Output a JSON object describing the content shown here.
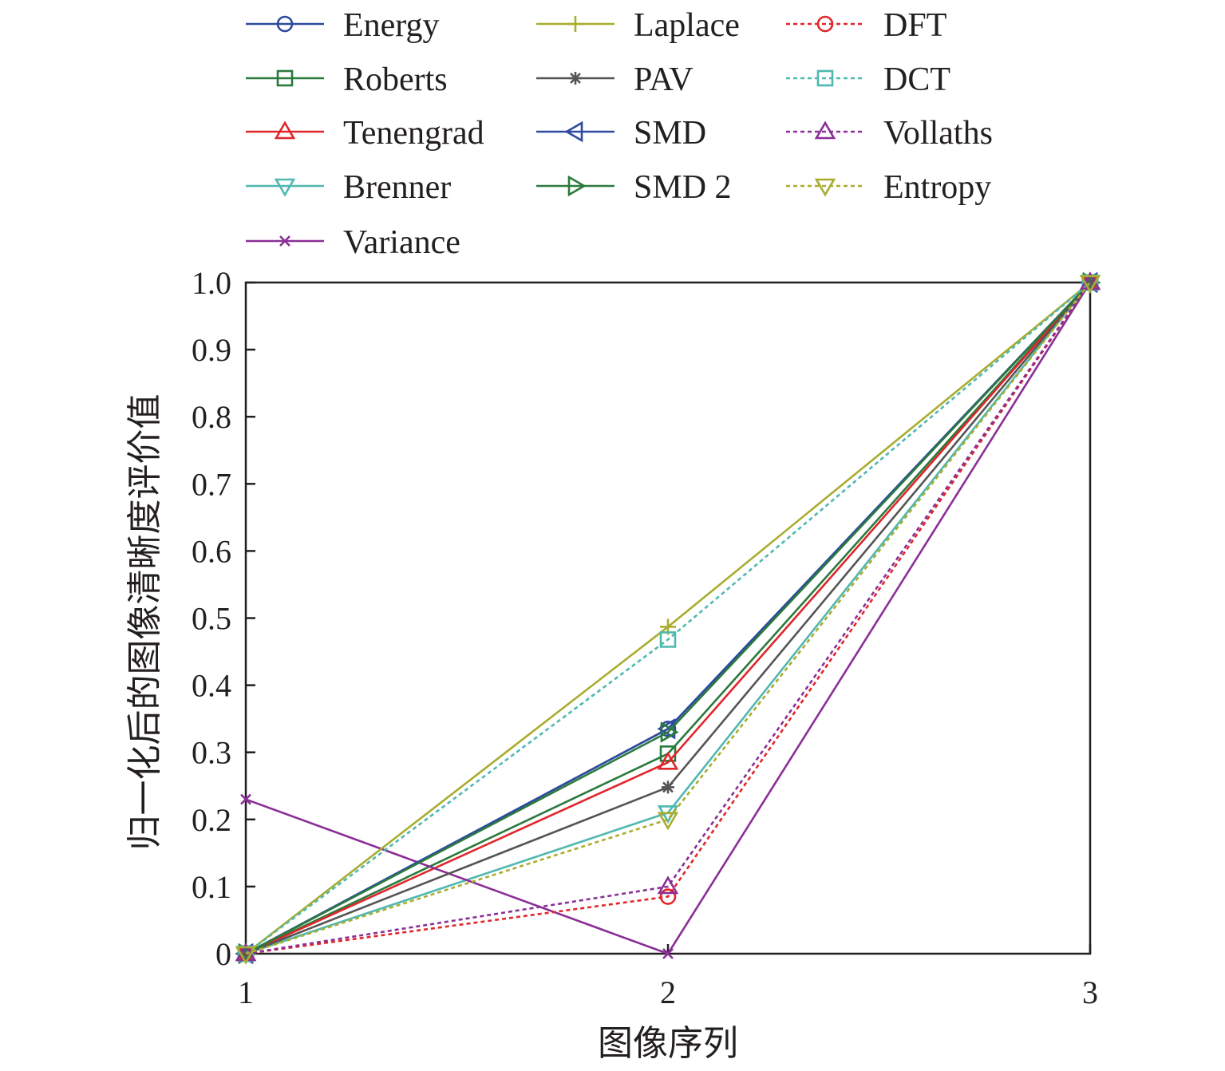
{
  "chart_data": {
    "type": "line",
    "xlabel": "图像序列",
    "ylabel": "归一化后的图像清晰度评价值",
    "x": [
      1,
      2,
      3
    ],
    "x_ticks": [
      "1",
      "2",
      "3"
    ],
    "xlim": [
      1,
      3
    ],
    "ylim": [
      0,
      1.0
    ],
    "y_ticks": [
      "0",
      "0.1",
      "0.2",
      "0.3",
      "0.4",
      "0.5",
      "0.6",
      "0.7",
      "0.8",
      "0.9",
      "1.0"
    ],
    "grid": false,
    "legend_position": "top",
    "series": [
      {
        "name": "Energy",
        "values": [
          0,
          0.335,
          1
        ],
        "color": "#2e4a9e",
        "dash": "solid",
        "marker": "circle"
      },
      {
        "name": "Roberts",
        "values": [
          0,
          0.298,
          1
        ],
        "color": "#2a7a3c",
        "dash": "solid",
        "marker": "square"
      },
      {
        "name": "Tenengrad",
        "values": [
          0,
          0.285,
          1
        ],
        "color": "#e0262b",
        "dash": "solid",
        "marker": "triangle-up"
      },
      {
        "name": "Brenner",
        "values": [
          0,
          0.21,
          1
        ],
        "color": "#4fb8b0",
        "dash": "solid",
        "marker": "triangle-down"
      },
      {
        "name": "Variance",
        "values": [
          0.23,
          0,
          1
        ],
        "color": "#8a2f96",
        "dash": "solid",
        "marker": "x"
      },
      {
        "name": "Laplace",
        "values": [
          0,
          0.487,
          1
        ],
        "color": "#a9ad2f",
        "dash": "solid",
        "marker": "plus"
      },
      {
        "name": "PAV",
        "values": [
          0,
          0.248,
          1
        ],
        "color": "#555555",
        "dash": "solid",
        "marker": "star"
      },
      {
        "name": "SMD",
        "values": [
          0,
          0.335,
          1
        ],
        "color": "#2e4a9e",
        "dash": "solid",
        "marker": "triangle-left"
      },
      {
        "name": "SMD 2",
        "values": [
          0,
          0.33,
          1
        ],
        "color": "#2a7a3c",
        "dash": "solid",
        "marker": "triangle-right"
      },
      {
        "name": "DFT",
        "values": [
          0,
          0.085,
          1
        ],
        "color": "#e0262b",
        "dash": "dotted",
        "marker": "circle"
      },
      {
        "name": "DCT",
        "values": [
          0,
          0.468,
          1
        ],
        "color": "#4fb8b0",
        "dash": "dotted",
        "marker": "square"
      },
      {
        "name": "Vollaths",
        "values": [
          0,
          0.1,
          1
        ],
        "color": "#8a2f96",
        "dash": "dotted",
        "marker": "triangle-up"
      },
      {
        "name": "Entropy",
        "values": [
          0,
          0.2,
          1
        ],
        "color": "#a9ad2f",
        "dash": "dotted",
        "marker": "triangle-down"
      }
    ]
  }
}
